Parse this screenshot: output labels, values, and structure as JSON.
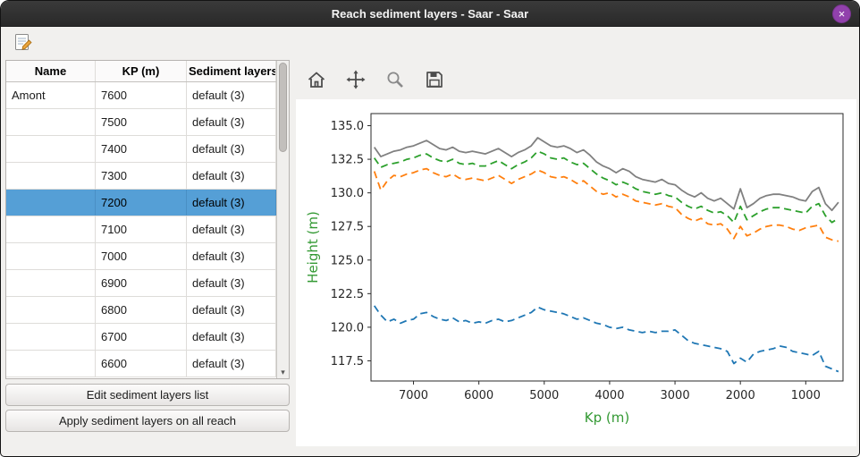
{
  "window": {
    "title": "Reach sediment layers - Saar - Saar",
    "close_glyph": "×"
  },
  "icons": {
    "titlebar": [
      "close"
    ],
    "main_toolbar": [
      "edit-sediment-note"
    ],
    "plot_toolbar": [
      "home",
      "pan",
      "zoom",
      "save"
    ],
    "scrollbar": [
      "scroll-down-arrow"
    ]
  },
  "scrollbar": {
    "down_glyph": "▾"
  },
  "table": {
    "columns": [
      "Name",
      "KP (m)",
      "Sediment layers"
    ],
    "rows": [
      {
        "name": "Amont",
        "kp": "7600",
        "layers": "default (3)",
        "selected": false
      },
      {
        "name": "",
        "kp": "7500",
        "layers": "default (3)",
        "selected": false
      },
      {
        "name": "",
        "kp": "7400",
        "layers": "default (3)",
        "selected": false
      },
      {
        "name": "",
        "kp": "7300",
        "layers": "default (3)",
        "selected": false
      },
      {
        "name": "",
        "kp": "7200",
        "layers": "default (3)",
        "selected": true
      },
      {
        "name": "",
        "kp": "7100",
        "layers": "default (3)",
        "selected": false
      },
      {
        "name": "",
        "kp": "7000",
        "layers": "default (3)",
        "selected": false
      },
      {
        "name": "",
        "kp": "6900",
        "layers": "default (3)",
        "selected": false
      },
      {
        "name": "",
        "kp": "6800",
        "layers": "default (3)",
        "selected": false
      },
      {
        "name": "",
        "kp": "6700",
        "layers": "default (3)",
        "selected": false
      },
      {
        "name": "",
        "kp": "6600",
        "layers": "default (3)",
        "selected": false
      }
    ]
  },
  "action_buttons": {
    "edit_label": "Edit sediment layers list",
    "apply_label": "Apply sediment layers on all reach"
  },
  "chart_data": {
    "type": "line",
    "title": "",
    "xlabel": "Kp (m)",
    "ylabel": "Height (m)",
    "axis_label_color": "#339933",
    "tick_color": "#262626",
    "x_inverted": true,
    "xlim": [
      7650,
      430
    ],
    "ylim": [
      116.0,
      135.9
    ],
    "xticks": [
      7000,
      6000,
      5000,
      4000,
      3000,
      2000,
      1000
    ],
    "yticks": [
      117.5,
      120.0,
      122.5,
      125.0,
      127.5,
      130.0,
      132.5,
      135.0
    ],
    "grid": false,
    "legend": "none",
    "x": [
      7600,
      7500,
      7400,
      7300,
      7200,
      7100,
      7000,
      6900,
      6800,
      6700,
      6600,
      6500,
      6400,
      6300,
      6200,
      6100,
      6000,
      5900,
      5800,
      5700,
      5600,
      5500,
      5400,
      5300,
      5200,
      5100,
      5000,
      4900,
      4800,
      4700,
      4600,
      4500,
      4400,
      4300,
      4200,
      4100,
      4000,
      3900,
      3800,
      3700,
      3600,
      3500,
      3400,
      3300,
      3200,
      3100,
      3000,
      2900,
      2800,
      2700,
      2600,
      2500,
      2400,
      2300,
      2200,
      2100,
      2000,
      1900,
      1800,
      1700,
      1600,
      1500,
      1400,
      1300,
      1200,
      1100,
      1000,
      900,
      800,
      700,
      600,
      500
    ],
    "series": [
      {
        "name": "blue-dashed",
        "color": "#1f77b4",
        "dash": true,
        "values": [
          121.6,
          120.9,
          120.4,
          120.6,
          120.3,
          120.5,
          120.6,
          121.0,
          121.1,
          120.8,
          120.6,
          120.5,
          120.7,
          120.4,
          120.5,
          120.3,
          120.4,
          120.3,
          120.5,
          120.6,
          120.4,
          120.5,
          120.7,
          120.9,
          121.1,
          121.5,
          121.3,
          121.2,
          121.1,
          121.0,
          120.8,
          120.6,
          120.7,
          120.5,
          120.3,
          120.2,
          120.0,
          119.9,
          120.0,
          119.8,
          119.7,
          119.6,
          119.7,
          119.6,
          119.7,
          119.7,
          119.8,
          119.4,
          119.0,
          118.8,
          118.7,
          118.6,
          118.5,
          118.4,
          118.2,
          117.3,
          117.7,
          117.4,
          118.0,
          118.2,
          118.3,
          118.4,
          118.6,
          118.5,
          118.2,
          118.1,
          118.0,
          117.9,
          118.2,
          117.1,
          116.9,
          116.7
        ]
      },
      {
        "name": "orange-dashed",
        "color": "#ff7f0e",
        "dash": true,
        "values": [
          131.6,
          130.2,
          130.9,
          131.3,
          131.2,
          131.4,
          131.5,
          131.7,
          131.8,
          131.5,
          131.3,
          131.2,
          131.4,
          131.1,
          131.0,
          131.1,
          131.0,
          130.9,
          131.1,
          131.3,
          131.0,
          130.7,
          131.0,
          131.2,
          131.4,
          131.7,
          131.5,
          131.2,
          131.1,
          131.2,
          131.0,
          130.7,
          130.9,
          130.5,
          130.1,
          129.9,
          130.0,
          129.7,
          129.9,
          129.7,
          129.4,
          129.3,
          129.2,
          129.1,
          129.2,
          129.0,
          128.9,
          128.4,
          128.1,
          127.9,
          128.1,
          127.7,
          127.6,
          127.7,
          127.3,
          126.6,
          127.5,
          126.8,
          127.0,
          127.3,
          127.5,
          127.6,
          127.6,
          127.5,
          127.3,
          127.2,
          127.4,
          127.5,
          127.6,
          126.7,
          126.5,
          126.4
        ]
      },
      {
        "name": "green-dashed",
        "color": "#2ca02c",
        "dash": true,
        "values": [
          132.6,
          131.9,
          132.1,
          132.2,
          132.3,
          132.5,
          132.6,
          132.8,
          132.9,
          132.6,
          132.4,
          132.3,
          132.5,
          132.2,
          132.1,
          132.2,
          132.0,
          132.0,
          132.2,
          132.4,
          132.1,
          131.8,
          132.1,
          132.3,
          132.6,
          133.1,
          132.9,
          132.6,
          132.5,
          132.6,
          132.3,
          132.1,
          132.2,
          131.8,
          131.4,
          131.1,
          130.9,
          130.6,
          130.8,
          130.6,
          130.3,
          130.1,
          130.0,
          129.9,
          130.0,
          129.8,
          129.7,
          129.3,
          129.0,
          128.8,
          129.0,
          128.7,
          128.5,
          128.6,
          128.3,
          127.8,
          129.0,
          128.0,
          128.3,
          128.6,
          128.8,
          128.9,
          128.9,
          128.8,
          128.7,
          128.6,
          128.5,
          129.0,
          129.2,
          128.3,
          127.8,
          128.1
        ]
      },
      {
        "name": "gray-solid",
        "color": "#808080",
        "dash": false,
        "values": [
          133.4,
          132.7,
          132.9,
          133.1,
          133.2,
          133.4,
          133.5,
          133.7,
          133.9,
          133.6,
          133.3,
          133.2,
          133.4,
          133.1,
          133.0,
          133.1,
          133.0,
          132.9,
          133.1,
          133.3,
          133.0,
          132.7,
          133.0,
          133.2,
          133.5,
          134.1,
          133.8,
          133.5,
          133.4,
          133.5,
          133.3,
          133.0,
          133.2,
          132.8,
          132.3,
          132.0,
          131.8,
          131.5,
          131.8,
          131.6,
          131.2,
          131.0,
          130.9,
          130.8,
          131.0,
          130.7,
          130.6,
          130.2,
          129.9,
          129.7,
          130.0,
          129.6,
          129.4,
          129.6,
          129.2,
          128.8,
          130.3,
          128.9,
          129.2,
          129.6,
          129.8,
          129.9,
          129.9,
          129.8,
          129.7,
          129.5,
          129.4,
          130.1,
          130.4,
          129.2,
          128.7,
          129.3
        ]
      }
    ]
  }
}
